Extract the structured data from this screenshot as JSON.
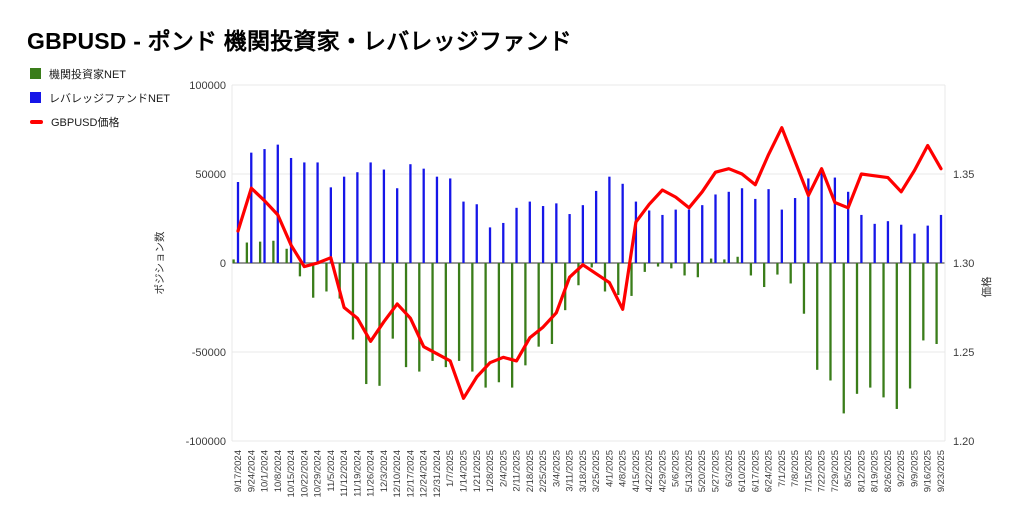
{
  "page": {
    "title": "GBPUSD - ポンド 機関投資家・レバレッジファンド"
  },
  "legend": {
    "items": [
      {
        "label": "機関投資家NET",
        "color": "#3a7d1a",
        "shape": "square",
        "icon": "green-square-swatch-icon"
      },
      {
        "label": "レバレッジファンドNET",
        "color": "#1616e8",
        "shape": "square",
        "icon": "blue-square-swatch-icon"
      },
      {
        "label": "GBPUSD価格",
        "color": "#ff0000",
        "shape": "line",
        "icon": "red-line-swatch-icon"
      }
    ]
  },
  "chart_data": {
    "type": "bar+line",
    "title": "GBPUSD - ポンド 機関投資家・レバレッジファンド",
    "grid": "horizontal",
    "legend_position": "top-left",
    "categories": [
      "9/17/2024",
      "9/24/2024",
      "10/1/2024",
      "10/8/2024",
      "10/15/2024",
      "10/22/2024",
      "10/29/2024",
      "11/5/2024",
      "11/12/2024",
      "11/19/2024",
      "11/26/2024",
      "12/3/2024",
      "12/10/2024",
      "12/17/2024",
      "12/24/2024",
      "12/31/2024",
      "1/7/2025",
      "1/14/2025",
      "1/21/2025",
      "1/28/2025",
      "2/4/2025",
      "2/11/2025",
      "2/18/2025",
      "2/25/2025",
      "3/4/2025",
      "3/11/2025",
      "3/18/2025",
      "3/25/2025",
      "4/1/2025",
      "4/8/2025",
      "4/15/2025",
      "4/22/2025",
      "4/29/2025",
      "5/6/2025",
      "5/13/2025",
      "5/20/2025",
      "5/27/2025",
      "6/3/2025",
      "6/10/2025",
      "6/17/2025",
      "6/24/2025",
      "7/1/2025",
      "7/8/2025",
      "7/15/2025",
      "7/22/2025",
      "7/29/2025",
      "8/5/2025",
      "8/12/2025",
      "8/19/2025",
      "8/26/2025",
      "9/2/2025",
      "9/9/2025",
      "9/16/2025",
      "9/23/2025"
    ],
    "series": [
      {
        "name": "機関投資家NET",
        "type": "bar",
        "axis": "left",
        "color": "#3a7d1a",
        "values": [
          2000,
          11500,
          12000,
          12500,
          8000,
          -7500,
          -19500,
          -16000,
          -20000,
          -43000,
          -68000,
          -69000,
          -42500,
          -58500,
          -61000,
          -55000,
          -58500,
          -55000,
          -61000,
          -70000,
          -67000,
          -70000,
          -57500,
          -47000,
          -45500,
          -26500,
          -12500,
          -2500,
          -16000,
          -18000,
          -18500,
          -5000,
          -2000,
          -3000,
          -7000,
          -8000,
          2500,
          2000,
          3500,
          -7000,
          -13500,
          -6500,
          -11500,
          -28500,
          -60000,
          -66000,
          -84500,
          -73500,
          -70000,
          -75500,
          -82000,
          -70500,
          -43500,
          -45500
        ]
      },
      {
        "name": "レバレッジファンドNET",
        "type": "bar",
        "axis": "left",
        "color": "#1616e8",
        "values": [
          45500,
          62000,
          64000,
          66500,
          59000,
          56500,
          56500,
          42500,
          48500,
          51000,
          56500,
          52500,
          42000,
          55500,
          53000,
          48500,
          47500,
          34500,
          33000,
          20000,
          22500,
          31000,
          34500,
          32000,
          33500,
          27500,
          32500,
          40500,
          48500,
          44500,
          34500,
          29500,
          27000,
          30000,
          30000,
          32500,
          38500,
          40000,
          42000,
          36000,
          41500,
          30000,
          36500,
          47500,
          52500,
          48000,
          40000,
          27000,
          22000,
          23500,
          21500,
          16500,
          21000,
          27000
        ]
      },
      {
        "name": "GBPUSD価格",
        "type": "line",
        "axis": "right",
        "color": "#ff0000",
        "values": [
          1.318,
          1.342,
          1.335,
          1.327,
          1.31,
          1.298,
          1.3,
          1.303,
          1.275,
          1.269,
          1.256,
          1.267,
          1.277,
          1.269,
          1.253,
          1.249,
          1.245,
          1.224,
          1.236,
          1.244,
          1.247,
          1.245,
          1.258,
          1.264,
          1.272,
          1.292,
          1.299,
          1.294,
          1.289,
          1.274,
          1.323,
          1.333,
          1.341,
          1.337,
          1.331,
          1.34,
          1.351,
          1.353,
          1.35,
          1.344,
          1.361,
          1.376,
          1.357,
          1.338,
          1.353,
          1.334,
          1.331,
          1.35,
          1.349,
          1.348,
          1.34,
          1.352,
          1.366,
          1.353
        ]
      }
    ],
    "left_axis": {
      "title": "ポジション数",
      "min": -100000,
      "max": 100000,
      "ticks": [
        {
          "label": "100000",
          "value": 100000
        },
        {
          "label": "50000",
          "value": 50000
        },
        {
          "label": "0",
          "value": 0
        },
        {
          "label": "-50000",
          "value": -50000
        },
        {
          "label": "-100000",
          "value": -100000
        }
      ]
    },
    "right_axis": {
      "title": "価格",
      "min": 1.2,
      "max": 1.4,
      "ticks": [
        {
          "label": "1.35",
          "value": 1.35
        },
        {
          "label": "1.30",
          "value": 1.3
        },
        {
          "label": "1.25",
          "value": 1.25
        },
        {
          "label": "1.20",
          "value": 1.2
        }
      ]
    }
  }
}
